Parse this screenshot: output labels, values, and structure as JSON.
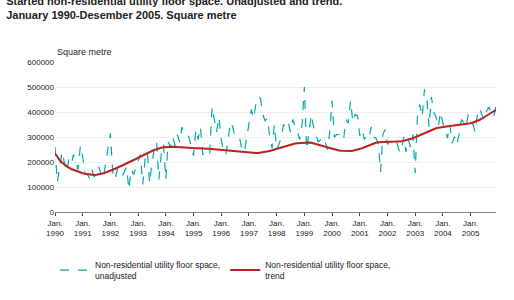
{
  "chart_data": {
    "type": "line",
    "title": "Started non-residential utility floor space. Unadjusted and trend.",
    "subtitle": "January 1990-Desember 2005. Square metre",
    "ylabel": "Square metre",
    "ylim": [
      0,
      600000
    ],
    "yticks": [
      0,
      100000,
      200000,
      300000,
      400000,
      500000,
      600000
    ],
    "grid": true,
    "legend": "lower left",
    "categories": [
      "Jan.\n1990",
      null,
      null,
      null,
      null,
      null,
      null,
      null,
      null,
      null,
      null,
      null,
      "Jan.\n1991",
      null,
      null,
      null,
      null,
      null,
      null,
      null,
      null,
      null,
      null,
      null,
      "Jan.\n1992",
      null,
      null,
      null,
      null,
      null,
      null,
      null,
      null,
      null,
      null,
      null,
      "Jan.\n1993",
      null,
      null,
      null,
      null,
      null,
      null,
      null,
      null,
      null,
      null,
      null,
      "Jan.\n1994",
      null,
      null,
      null,
      null,
      null,
      null,
      null,
      null,
      null,
      null,
      null,
      "Jan.\n1995",
      null,
      null,
      null,
      null,
      null,
      null,
      null,
      null,
      null,
      null,
      null,
      "Jan.\n1996",
      null,
      null,
      null,
      null,
      null,
      null,
      null,
      null,
      null,
      null,
      null,
      "Jan.\n1997",
      null,
      null,
      null,
      null,
      null,
      null,
      null,
      null,
      null,
      null,
      null,
      "Jan.\n1998",
      null,
      null,
      null,
      null,
      null,
      null,
      null,
      null,
      null,
      null,
      null,
      "Jan.\n1999",
      null,
      null,
      null,
      null,
      null,
      null,
      null,
      null,
      null,
      null,
      null,
      "Jan.\n2000",
      null,
      null,
      null,
      null,
      null,
      null,
      null,
      null,
      null,
      null,
      null,
      "Jan.\n2001",
      null,
      null,
      null,
      null,
      null,
      null,
      null,
      null,
      null,
      null,
      null,
      "Jan.\n2002",
      null,
      null,
      null,
      null,
      null,
      null,
      null,
      null,
      null,
      null,
      null,
      "Jan.\n2003",
      null,
      null,
      null,
      null,
      null,
      null,
      null,
      null,
      null,
      null,
      null,
      "Jan.\n2004",
      null,
      null,
      null,
      null,
      null,
      null,
      null,
      null,
      null,
      null,
      null,
      "Jan.\n2005",
      null,
      null,
      null,
      null,
      null,
      null,
      null,
      null,
      null,
      null,
      null
    ],
    "series": [
      {
        "name": "Non-residential utility floor space,\nunadjusted",
        "color": "#00AAAA",
        "line_style": "dashed",
        "values": [
          260000,
          120000,
          175000,
          240000,
          200000,
          160000,
          210000,
          190000,
          230000,
          200000,
          170000,
          265000,
          220000,
          155000,
          150000,
          135000,
          170000,
          140000,
          160000,
          180000,
          150000,
          135000,
          200000,
          265000,
          315000,
          160000,
          130000,
          170000,
          150000,
          140000,
          160000,
          180000,
          90000,
          170000,
          150000,
          180000,
          210000,
          230000,
          110000,
          210000,
          240000,
          115000,
          200000,
          250000,
          280000,
          130000,
          230000,
          270000,
          130000,
          280000,
          260000,
          300000,
          265000,
          310000,
          280000,
          340000,
          310000,
          310000,
          300000,
          255000,
          225000,
          330000,
          290000,
          340000,
          230000,
          230000,
          220000,
          230000,
          420000,
          370000,
          320000,
          380000,
          290000,
          240000,
          230000,
          290000,
          360000,
          340000,
          300000,
          295000,
          295000,
          245000,
          240000,
          295000,
          345000,
          410000,
          375000,
          430000,
          460000,
          455000,
          390000,
          365000,
          375000,
          300000,
          255000,
          350000,
          250000,
          270000,
          300000,
          350000,
          340000,
          360000,
          320000,
          370000,
          340000,
          320000,
          290000,
          350000,
          500000,
          250000,
          320000,
          390000,
          340000,
          310000,
          280000,
          290000,
          300000,
          280000,
          250000,
          320000,
          445000,
          300000,
          310000,
          310000,
          310000,
          290000,
          370000,
          355000,
          445000,
          360000,
          390000,
          385000,
          305000,
          330000,
          290000,
          310000,
          300000,
          340000,
          300000,
          295000,
          275000,
          160000,
          310000,
          330000,
          270000,
          285000,
          280000,
          275000,
          280000,
          245000,
          240000,
          300000,
          240000,
          290000,
          260000,
          310000,
          155000,
          390000,
          430000,
          380000,
          490000,
          460000,
          340000,
          460000,
          400000,
          380000,
          340000,
          400000,
          355000,
          335000,
          295000,
          350000,
          275000,
          300000,
          270000,
          310000,
          370000,
          360000,
          340000,
          390000,
          370000,
          350000,
          320000,
          395000,
          415000,
          385000,
          370000,
          405000,
          420000,
          390000,
          380000,
          425000
        ]
      },
      {
        "name": "Non-residential utility floor space,\ntrend",
        "color": "#BB2222",
        "line_style": "solid",
        "values": [
          235000,
          220000,
          208000,
          198000,
          190000,
          183000,
          177000,
          172000,
          168000,
          164000,
          161000,
          158000,
          155000,
          153000,
          151000,
          149000,
          148000,
          148000,
          149000,
          150000,
          152000,
          155000,
          158000,
          161000,
          165000,
          169000,
          173000,
          177000,
          181000,
          185000,
          189000,
          193000,
          197000,
          202000,
          207000,
          212000,
          217000,
          222000,
          227000,
          232000,
          236000,
          240000,
          244000,
          248000,
          252000,
          255000,
          257000,
          259000,
          260000,
          261000,
          261000,
          261000,
          261000,
          260000,
          259000,
          258000,
          257000,
          256000,
          255000,
          255000,
          255000,
          255000,
          255000,
          255000,
          255000,
          255000,
          254000,
          253000,
          252000,
          251000,
          250000,
          249000,
          248000,
          247000,
          246000,
          245000,
          244000,
          243000,
          242000,
          241000,
          240000,
          239000,
          238000,
          237000,
          237000,
          236000,
          236000,
          236000,
          236000,
          237000,
          238000,
          240000,
          242000,
          244000,
          247000,
          250000,
          253000,
          256000,
          259000,
          262000,
          265000,
          268000,
          270000,
          272000,
          274000,
          275000,
          276000,
          277000,
          278000,
          278000,
          278000,
          277000,
          275000,
          272000,
          270000,
          267000,
          264000,
          261000,
          258000,
          255000,
          252000,
          250000,
          248000,
          246000,
          245000,
          244000,
          243000,
          243000,
          244000,
          245000,
          247000,
          249000,
          252000,
          255000,
          259000,
          263000,
          267000,
          271000,
          274000,
          277000,
          279000,
          280000,
          281000,
          281000,
          281000,
          281000,
          281000,
          281000,
          281000,
          282000,
          283000,
          285000,
          287000,
          289000,
          292000,
          295000,
          299000,
          303000,
          308000,
          313000,
          318000,
          322000,
          326000,
          329000,
          332000,
          335000,
          337000,
          339000,
          341000,
          342000,
          343000,
          344000,
          345000,
          346000,
          347000,
          348000,
          349000,
          350000,
          351000,
          353000,
          355000,
          358000,
          361000,
          365000,
          369000,
          374000,
          379000,
          385000,
          391000,
          397000,
          403000,
          408000
        ]
      }
    ]
  }
}
